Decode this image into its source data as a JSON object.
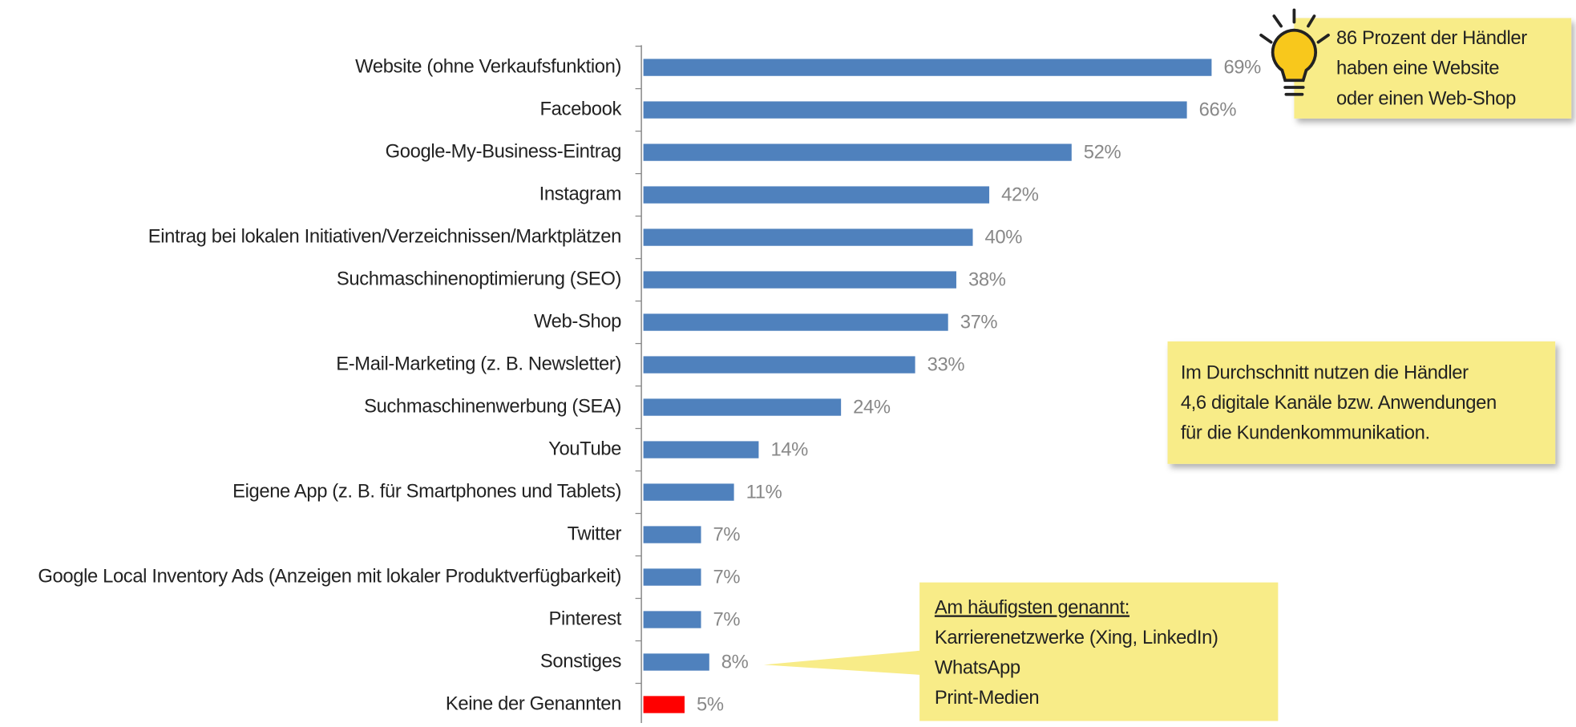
{
  "chart_data": {
    "type": "barh",
    "categories": [
      "Website (ohne Verkaufsfunktion)",
      "Facebook",
      "Google-My-Business-Eintrag",
      "Instagram",
      "Eintrag bei lokalen Initiativen/Verzeichnissen/Marktplätzen",
      "Suchmaschinenoptimierung (SEO)",
      "Web-Shop",
      "E-Mail-Marketing (z. B. Newsletter)",
      "Suchmaschinenwerbung (SEA)",
      "YouTube",
      "Eigene App (z. B. für Smartphones und Tablets)",
      "Twitter",
      "Google Local Inventory Ads (Anzeigen mit lokaler Produktverfügbarkeit)",
      "Pinterest",
      "Sonstiges",
      "Keine der Genannten"
    ],
    "values": [
      69,
      66,
      52,
      42,
      40,
      38,
      37,
      33,
      24,
      14,
      11,
      7,
      7,
      7,
      8,
      5
    ],
    "value_labels": [
      "69%",
      "66%",
      "52%",
      "42%",
      "40%",
      "38%",
      "37%",
      "33%",
      "24%",
      "14%",
      "11%",
      "7%",
      "7%",
      "7%",
      "8%",
      "5%"
    ],
    "colors": [
      "#4f81bd",
      "#4f81bd",
      "#4f81bd",
      "#4f81bd",
      "#4f81bd",
      "#4f81bd",
      "#4f81bd",
      "#4f81bd",
      "#4f81bd",
      "#4f81bd",
      "#4f81bd",
      "#4f81bd",
      "#4f81bd",
      "#4f81bd",
      "#4f81bd",
      "#ff0000"
    ],
    "annotations": [
      {
        "lines": [
          "86 Prozent der Händler",
          "haben eine Website",
          "oder einen Web-Shop"
        ]
      },
      {
        "lines": [
          "Im Durchschnitt nutzen die Händler",
          "4,6 digitale Kanäle bzw. Anwendungen",
          "für die Kundenkommunikation."
        ]
      },
      {
        "lines": [
          "Am häufigsten genannt:",
          "Karrierenetzwerke (Xing, LinkedIn)",
          "WhatsApp",
          "Print-Medien"
        ]
      }
    ]
  }
}
